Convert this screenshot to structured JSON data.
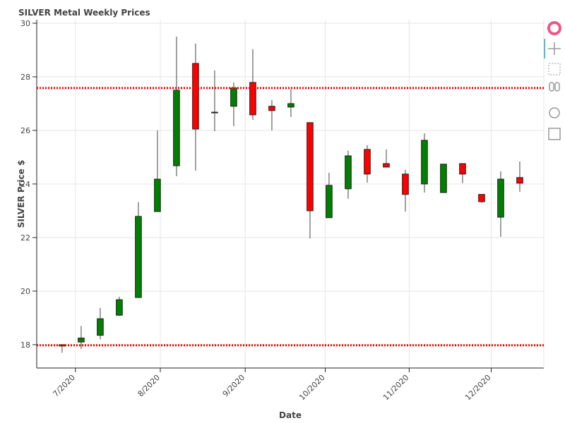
{
  "chart_data": {
    "type": "candlestick",
    "title": "SILVER Metal Weekly Prices",
    "x_label": "Date",
    "y_label": "SILVER Price $",
    "x": [
      0,
      1,
      2,
      3,
      4,
      5,
      6,
      7,
      8,
      9,
      10,
      11,
      12,
      13,
      14,
      15,
      16,
      17,
      18,
      19,
      20,
      21,
      22,
      23,
      24
    ],
    "open": [
      17.95,
      18.1,
      18.35,
      19.1,
      19.76,
      22.97,
      24.68,
      28.5,
      26.66,
      26.9,
      27.79,
      26.9,
      26.87,
      26.29,
      22.74,
      23.82,
      25.29,
      24.76,
      24.37,
      24.0,
      23.68,
      24.76,
      23.61,
      22.76,
      24.24
    ],
    "high": [
      18.02,
      18.7,
      19.37,
      19.79,
      23.32,
      26.0,
      29.5,
      29.24,
      28.24,
      27.79,
      29.03,
      27.13,
      27.53,
      26.29,
      24.42,
      25.24,
      25.45,
      25.29,
      24.53,
      25.89,
      24.74,
      24.76,
      23.61,
      24.47,
      24.84
    ],
    "low": [
      17.7,
      17.84,
      18.2,
      19.08,
      19.76,
      22.97,
      24.29,
      24.5,
      25.97,
      26.16,
      26.4,
      26.0,
      26.5,
      21.97,
      22.74,
      23.45,
      24.05,
      24.63,
      22.97,
      23.68,
      23.68,
      24.03,
      23.29,
      22.03,
      23.71
    ],
    "close": [
      18.0,
      18.25,
      18.97,
      19.68,
      22.79,
      24.18,
      27.5,
      26.05,
      26.68,
      27.58,
      26.58,
      26.74,
      27.0,
      23.0,
      23.95,
      25.05,
      24.37,
      24.63,
      23.61,
      25.63,
      24.74,
      24.37,
      23.34,
      24.18,
      24.03
    ],
    "increasing_color": "#008000",
    "decreasing_color": "#ff0000",
    "hlines": [
      27.58,
      17.98
    ],
    "hline_color": "#ff0000",
    "xlim": [
      -1.33,
      25.26
    ],
    "xticks": [
      {
        "value": 0.7,
        "label": "7/2020"
      },
      {
        "value": 5.15,
        "label": "8/2020"
      },
      {
        "value": 9.6,
        "label": "9/2020"
      },
      {
        "value": 13.8,
        "label": "10/2020"
      },
      {
        "value": 18.2,
        "label": "11/2020"
      },
      {
        "value": 22.5,
        "label": "12/2020"
      }
    ],
    "ylim": [
      17.13,
      30.13
    ],
    "yticks": [
      18,
      20,
      22,
      24,
      26,
      28,
      30
    ],
    "grid": true
  }
}
